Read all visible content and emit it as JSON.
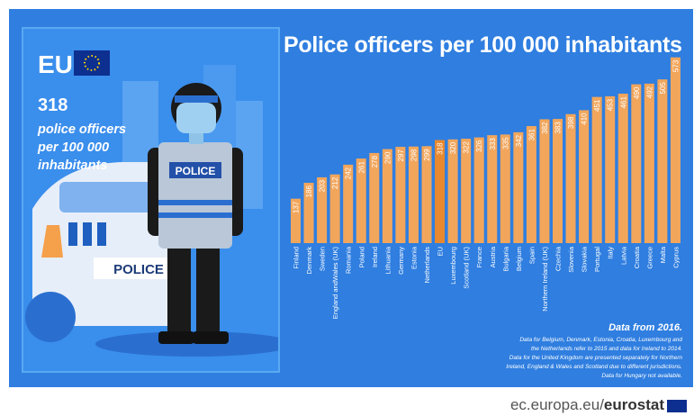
{
  "chart_data": {
    "type": "bar",
    "title": "Police officers per 100 000 inhabitants",
    "categories": [
      "Finland",
      "Denmark",
      "Sweden",
      "England andWales (UK)",
      "Romania",
      "Poland",
      "Ireland",
      "Lithuania",
      "Germany",
      "Estonia",
      "Netherlands",
      "EU",
      "Luxembourg",
      "Scotland (UK)",
      "France",
      "Austria",
      "Bulgaria",
      "Belgium",
      "Spain",
      "Northern Ireland (UK)",
      "Czechia",
      "Slovenia",
      "Slovakia",
      "Portugal",
      "Italy",
      "Latvia",
      "Croatia",
      "Greece",
      "Malta",
      "Cyprus"
    ],
    "values": [
      137,
      186,
      203,
      212,
      242,
      261,
      278,
      290,
      297,
      298,
      299,
      318,
      320,
      322,
      326,
      333,
      335,
      342,
      361,
      382,
      383,
      398,
      410,
      451,
      453,
      461,
      490,
      492,
      505,
      573
    ],
    "highlight": "EU",
    "colors": {
      "bar": "#f2a65c",
      "highlight": "#e8892f"
    }
  },
  "illustration": {
    "eu_label": "EU",
    "eu_value": "318",
    "eu_desc": "police officers\nper 100 000\ninhabitants",
    "vest_text": "POLICE",
    "car_text": "POLICE"
  },
  "notes": {
    "heading": "Data from 2016.",
    "lines": [
      "Data for Belgium, Denmark, Estonia, Croatia, Luxembourg and",
      "the Netherlands refer to 2015 and data for Ireland to 2014.",
      "Data for the United Kingdom are presented separately for Northern",
      "Ireland, England & Wales and Scotland due to different jurisdictions.",
      "Data for Hungary not available."
    ]
  },
  "source": {
    "prefix": "ec.europa.eu/",
    "brand": "eurostat"
  },
  "colors": {
    "background": "#2f7ee0",
    "text": "#ffffff"
  }
}
